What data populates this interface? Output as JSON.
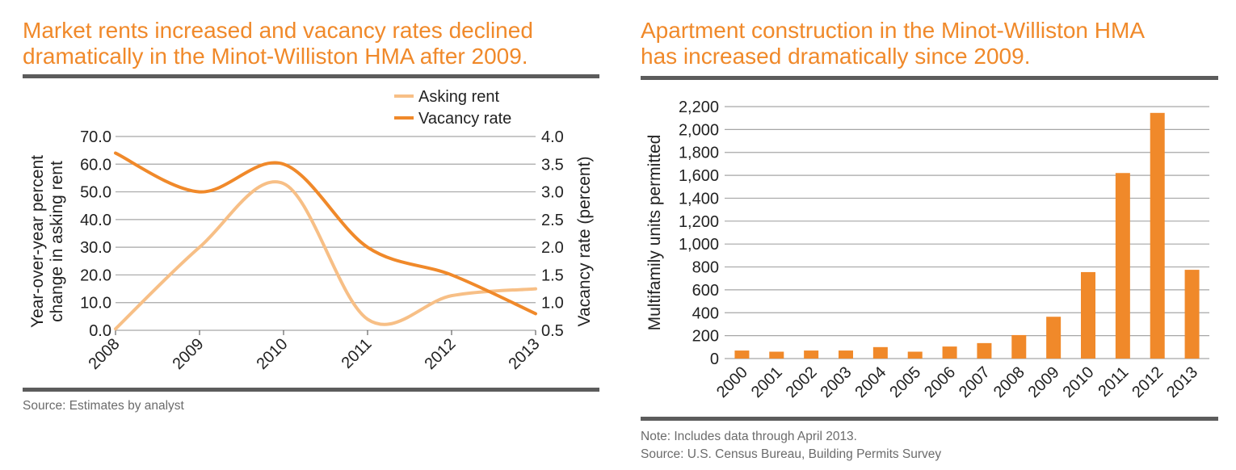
{
  "colors": {
    "accent": "#f0892a",
    "light_accent": "#f7bf86",
    "rule": "#5c5c5c",
    "grid": "#a6a6a6"
  },
  "left_panel": {
    "title_line1": "Market rents increased and vacancy rates declined",
    "title_line2": "dramatically in the Minot-Williston HMA after 2009.",
    "source": "Source: Estimates by analyst"
  },
  "right_panel": {
    "title_line1": "Apartment construction in the Minot-Williston HMA",
    "title_line2": "has increased dramatically since 2009.",
    "note": "Note: Includes data through April 2013.",
    "source": "Source: U.S. Census Bureau, Building Permits Survey"
  },
  "chart_data": [
    {
      "type": "line",
      "categories": [
        "2008",
        "2009",
        "2010",
        "2011",
        "2012",
        "2013"
      ],
      "y_label_line1": "Year-over-year percent",
      "y_label_line2": "change in asking rent",
      "y2_label": "Vacancy rate (percent)",
      "ylim": [
        0,
        70
      ],
      "y_ticks": [
        "0.0",
        "10.0",
        "20.0",
        "30.0",
        "40.0",
        "50.0",
        "60.0",
        "70.0"
      ],
      "y2lim": [
        0.5,
        4.0
      ],
      "y2_ticks": [
        "0.5",
        "1.0",
        "1.5",
        "2.0",
        "2.5",
        "3.0",
        "3.5",
        "4.0"
      ],
      "grid": true,
      "legend_position": "top-right",
      "series": [
        {
          "name": "Asking rent",
          "axis": "left",
          "color": "#f7bf86",
          "values": [
            0.5,
            30.0,
            53.0,
            4.0,
            12.5,
            15.0
          ]
        },
        {
          "name": "Vacancy rate",
          "axis": "right",
          "color": "#f0892a",
          "values": [
            3.7,
            3.0,
            3.5,
            2.0,
            1.5,
            0.8
          ]
        }
      ]
    },
    {
      "type": "bar",
      "categories": [
        "2000",
        "2001",
        "2002",
        "2003",
        "2004",
        "2005",
        "2006",
        "2007",
        "2008",
        "2009",
        "2010",
        "2011",
        "2012",
        "2013"
      ],
      "values": [
        70,
        60,
        70,
        70,
        100,
        60,
        105,
        135,
        205,
        365,
        755,
        1620,
        2145,
        775
      ],
      "ylabel": "Multifamily units permitted",
      "ylim": [
        0,
        2200
      ],
      "y_ticks": [
        "0",
        "200",
        "400",
        "600",
        "800",
        "1,000",
        "1,200",
        "1,400",
        "1,600",
        "1,800",
        "2,000",
        "2,200"
      ],
      "grid": true,
      "color": "#f0892a"
    }
  ]
}
